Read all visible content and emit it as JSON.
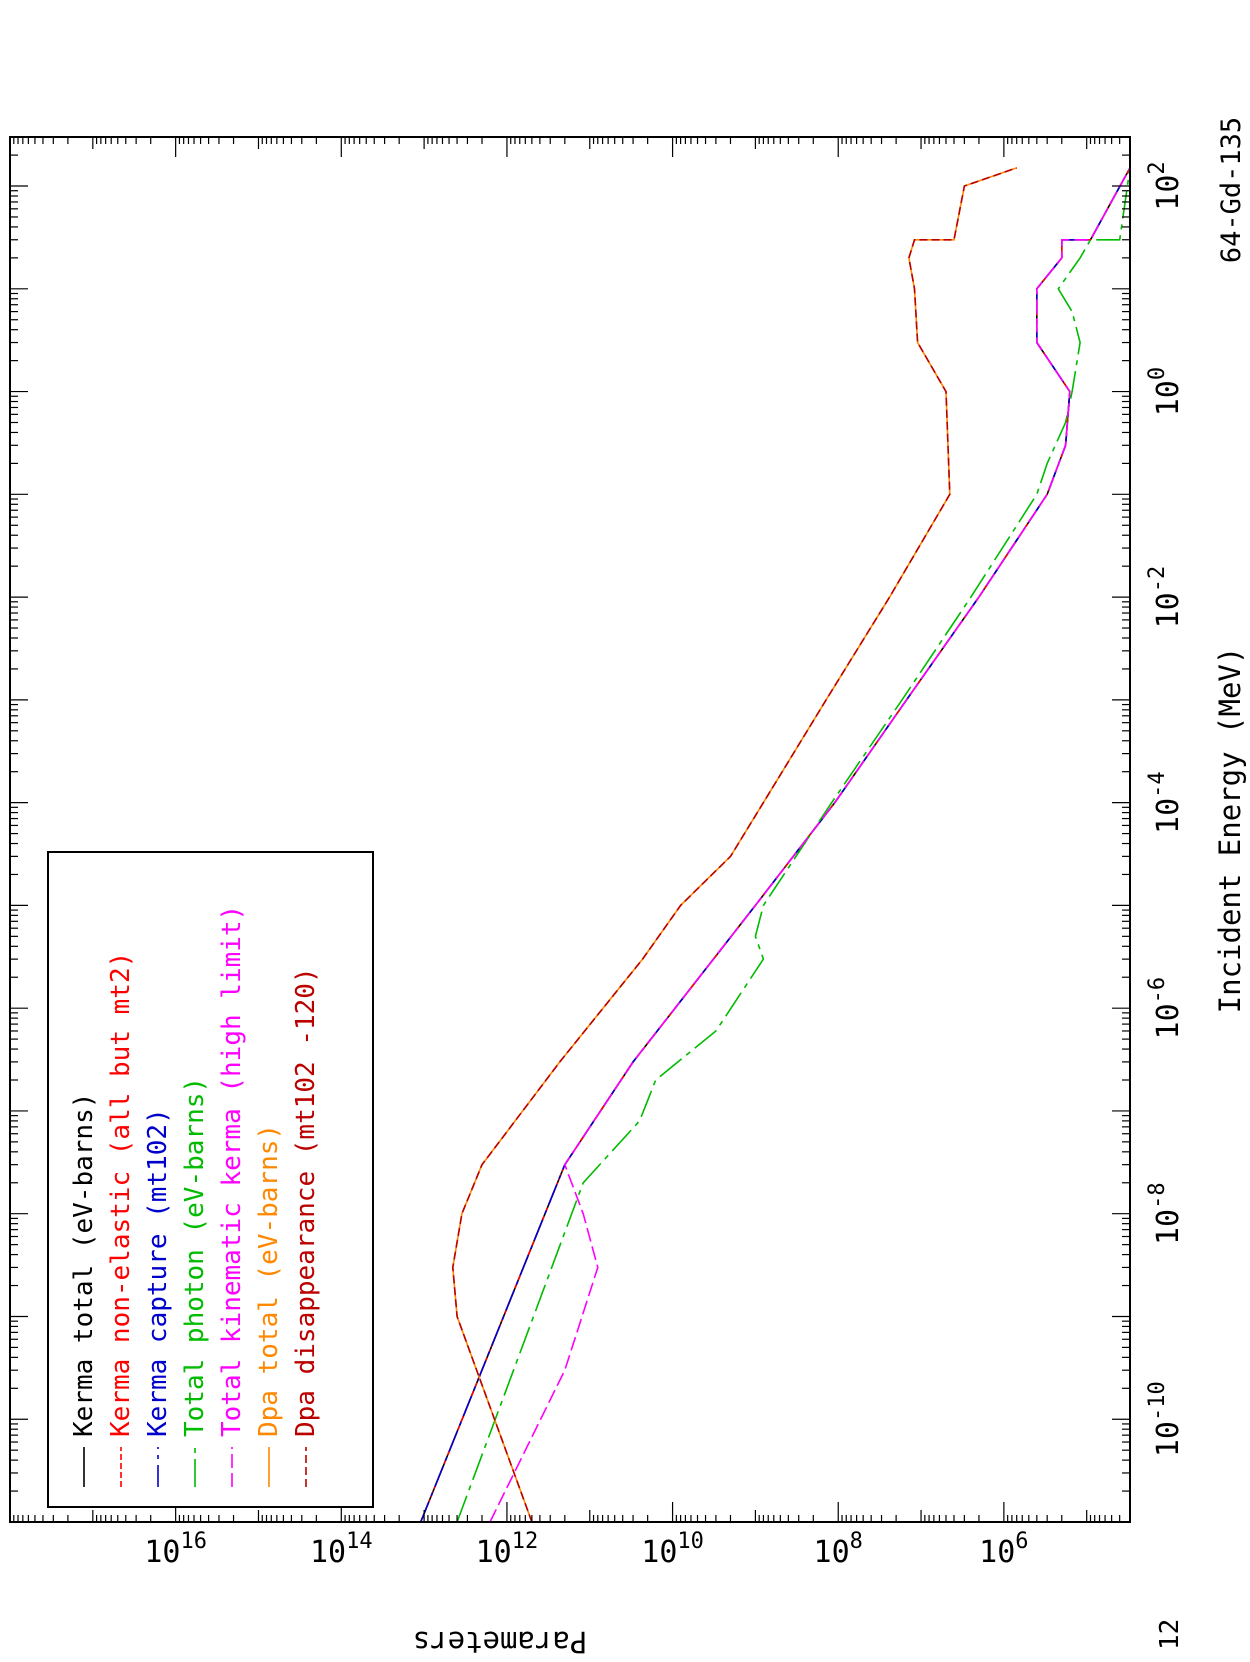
{
  "chart_data": {
    "type": "line",
    "xscale": "log",
    "yscale": "log",
    "xlim": [
      1e-11,
      300
    ],
    "ylim": [
      30000,
      1e+18
    ],
    "xlabel": "Incident Energy (MeV)",
    "ylabel": "Parameters",
    "corner_label": "64-Gd-135",
    "corner_number": "12",
    "legend_placement": "top-left",
    "x_ticks": [
      {
        "value": 1e-10,
        "base": "10",
        "exp": "-10"
      },
      {
        "value": 1e-08,
        "base": "10",
        "exp": "-8"
      },
      {
        "value": 1e-06,
        "base": "10",
        "exp": "-6"
      },
      {
        "value": 0.0001,
        "base": "10",
        "exp": "-4"
      },
      {
        "value": 0.01,
        "base": "10",
        "exp": "-2"
      },
      {
        "value": 1,
        "base": "10",
        "exp": "0"
      },
      {
        "value": 100,
        "base": "10",
        "exp": "2"
      }
    ],
    "y_ticks": [
      {
        "value": 1000000.0,
        "base": "10",
        "exp": "6"
      },
      {
        "value": 100000000.0,
        "base": "10",
        "exp": "8"
      },
      {
        "value": 10000000000.0,
        "base": "10",
        "exp": "10"
      },
      {
        "value": 1000000000000.0,
        "base": "10",
        "exp": "12"
      },
      {
        "value": 100000000000000.0,
        "base": "10",
        "exp": "14"
      },
      {
        "value": 1e+16,
        "base": "10",
        "exp": "16"
      }
    ],
    "series": [
      {
        "name": "Kerma total  (eV-barns)",
        "color": "#000000",
        "dash": "",
        "points": [
          [
            1e-11,
            11000000000000.0
          ],
          [
            3e-08,
            200000000000.0
          ],
          [
            3e-07,
            30000000000.0
          ],
          [
            1e-05,
            1000000000.0
          ],
          [
            0.0001,
            110000000.0
          ],
          [
            0.001,
            15000000.0
          ],
          [
            0.01,
            2000000.0
          ],
          [
            0.1,
            300000.0
          ],
          [
            0.3,
            180000.0
          ],
          [
            1,
            160000.0
          ],
          [
            3,
            400000.0
          ],
          [
            10,
            400000.0
          ],
          [
            20,
            200000.0
          ],
          [
            30,
            200000.0
          ],
          [
            30,
            90000.0
          ],
          [
            150,
            20000.0
          ]
        ]
      },
      {
        "name": "Kerma non-elastic (all but mt2)",
        "color": "#ff0000",
        "dash": "6,3",
        "points": [
          [
            1e-11,
            11000000000000.0
          ],
          [
            3e-08,
            200000000000.0
          ],
          [
            3e-07,
            30000000000.0
          ],
          [
            1e-05,
            1000000000.0
          ],
          [
            0.0001,
            110000000.0
          ],
          [
            0.001,
            15000000.0
          ],
          [
            0.01,
            2000000.0
          ],
          [
            0.1,
            300000.0
          ],
          [
            0.3,
            180000.0
          ],
          [
            1,
            160000.0
          ],
          [
            3,
            400000.0
          ],
          [
            10,
            400000.0
          ],
          [
            20,
            200000.0
          ],
          [
            30,
            200000.0
          ],
          [
            30,
            90000.0
          ],
          [
            150,
            20000.0
          ]
        ]
      },
      {
        "name": "Kerma capture (mt102)",
        "color": "#0000cc",
        "dash": "22,6,4,6",
        "points": [
          [
            1e-11,
            11000000000000.0
          ],
          [
            3e-08,
            200000000000.0
          ],
          [
            3e-07,
            30000000000.0
          ],
          [
            1e-05,
            1000000000.0
          ],
          [
            0.0001,
            110000000.0
          ],
          [
            0.001,
            15000000.0
          ],
          [
            0.01,
            2000000.0
          ],
          [
            0.1,
            300000.0
          ],
          [
            0.3,
            180000.0
          ],
          [
            1,
            160000.0
          ],
          [
            3,
            400000.0
          ],
          [
            10,
            400000.0
          ],
          [
            20,
            200000.0
          ],
          [
            30,
            200000.0
          ],
          [
            30,
            90000.0
          ],
          [
            150,
            20000.0
          ]
        ]
      },
      {
        "name": "Total photon (eV-barns)",
        "color": "#00bb00",
        "dash": "28,6,5,6",
        "points": [
          [
            1e-11,
            4000000000000.0
          ],
          [
            2e-08,
            120000000000.0
          ],
          [
            8e-08,
            25000000000.0
          ],
          [
            2e-07,
            16000000000.0
          ],
          [
            6e-07,
            3000000000.0
          ],
          [
            3e-06,
            800000000.0
          ],
          [
            5e-06,
            1000000000.0
          ],
          [
            1e-05,
            800000000.0
          ],
          [
            0.0001,
            120000000.0
          ],
          [
            0.001,
            17000000.0
          ],
          [
            0.01,
            2500000.0
          ],
          [
            0.1,
            400000.0
          ],
          [
            0.2,
            300000.0
          ],
          [
            0.5,
            180000.0
          ],
          [
            1,
            150000.0
          ],
          [
            3,
            120000.0
          ],
          [
            6,
            150000.0
          ],
          [
            10,
            220000.0
          ],
          [
            20,
            120000.0
          ],
          [
            30,
            90000.0
          ],
          [
            30,
            40000.0
          ],
          [
            150,
            15000.0
          ]
        ]
      },
      {
        "name": "Total kinematic kerma (high limit)",
        "color": "#ff00ff",
        "dash": "14,5",
        "points": [
          [
            1e-11,
            1600000000000.0
          ],
          [
            3e-10,
            200000000000.0
          ],
          [
            3e-09,
            80000000000.0
          ],
          [
            1e-08,
            120000000000.0
          ],
          [
            3e-08,
            200000000000.0
          ],
          [
            3e-07,
            30000000000.0
          ],
          [
            1e-05,
            1000000000.0
          ],
          [
            0.0001,
            110000000.0
          ],
          [
            0.001,
            15000000.0
          ],
          [
            0.01,
            2000000.0
          ],
          [
            0.1,
            300000.0
          ],
          [
            0.3,
            180000.0
          ],
          [
            1,
            160000.0
          ],
          [
            3,
            400000.0
          ],
          [
            10,
            400000.0
          ],
          [
            20,
            200000.0
          ],
          [
            30,
            200000.0
          ],
          [
            30,
            90000.0
          ],
          [
            150,
            20000.0
          ]
        ]
      },
      {
        "name": "Dpa total (eV-barns)",
        "color": "#ff8800",
        "dash": "",
        "points": [
          [
            1e-11,
            500000000000.0
          ],
          [
            1e-09,
            4000000000000.0
          ],
          [
            3e-09,
            4500000000000.0
          ],
          [
            1e-08,
            3500000000000.0
          ],
          [
            3e-08,
            2000000000000.0
          ],
          [
            3e-07,
            230000000000.0
          ],
          [
            3e-06,
            23000000000.0
          ],
          [
            1e-05,
            8000000000.0
          ],
          [
            3e-05,
            2000000000.0
          ],
          [
            0.0001,
            800000000.0
          ],
          [
            0.001,
            140000000.0
          ],
          [
            0.01,
            24000000.0
          ],
          [
            0.1,
            4500000.0
          ],
          [
            1,
            5000000.0
          ],
          [
            3,
            11000000.0
          ],
          [
            10,
            12000000.0
          ],
          [
            20,
            14000000.0
          ],
          [
            30,
            12000000.0
          ],
          [
            30,
            4000000.0
          ],
          [
            100,
            3000000.0
          ],
          [
            150,
            700000.0
          ]
        ]
      },
      {
        "name": "Dpa disappearance (mt102 -120)",
        "color": "#bb0000",
        "dash": "8,4",
        "points": [
          [
            1e-11,
            500000000000.0
          ],
          [
            1e-09,
            4000000000000.0
          ],
          [
            3e-09,
            4500000000000.0
          ],
          [
            1e-08,
            3500000000000.0
          ],
          [
            3e-08,
            2000000000000.0
          ],
          [
            3e-07,
            230000000000.0
          ],
          [
            3e-06,
            23000000000.0
          ],
          [
            1e-05,
            8000000000.0
          ],
          [
            3e-05,
            2000000000.0
          ],
          [
            0.0001,
            800000000.0
          ],
          [
            0.001,
            140000000.0
          ],
          [
            0.01,
            24000000.0
          ],
          [
            0.1,
            4500000.0
          ],
          [
            1,
            5000000.0
          ],
          [
            3,
            11000000.0
          ],
          [
            10,
            12000000.0
          ],
          [
            20,
            14000000.0
          ],
          [
            30,
            12000000.0
          ],
          [
            30,
            4000000.0
          ],
          [
            100,
            3000000.0
          ],
          [
            150,
            700000.0
          ]
        ]
      }
    ]
  }
}
